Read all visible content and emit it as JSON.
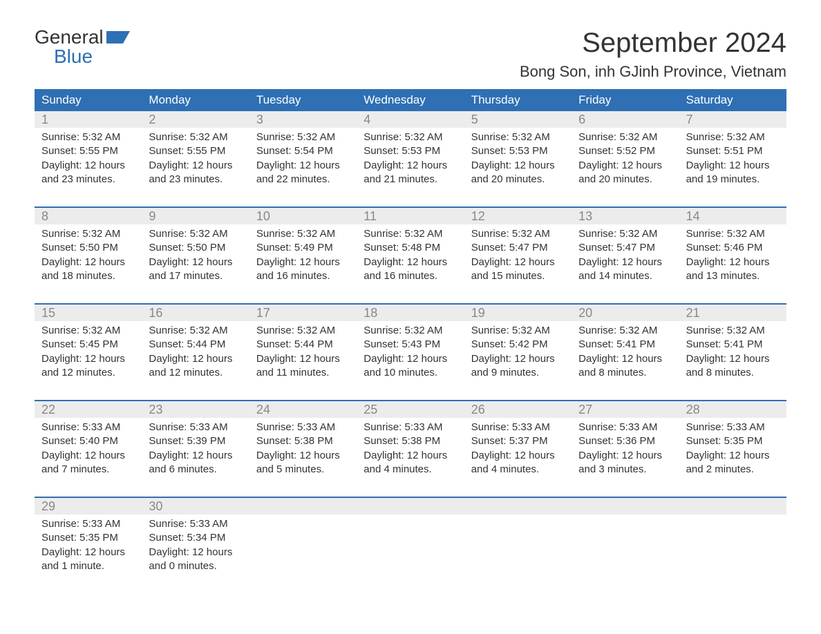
{
  "logo": {
    "line1": "General",
    "line2": "Blue"
  },
  "title": "September 2024",
  "location": "Bong Son, inh GJinh Province, Vietnam",
  "colors": {
    "header_bg": "#2f6fb3",
    "header_text": "#ffffff",
    "daynum_bg": "#ececec",
    "daynum_text": "#888888",
    "body_text": "#333333",
    "week_divider": "#2f6fb3",
    "logo_blue": "#2f6fb3",
    "page_bg": "#ffffff"
  },
  "typography": {
    "title_fontsize": 40,
    "location_fontsize": 22,
    "dow_fontsize": 17,
    "daynum_fontsize": 18,
    "body_fontsize": 15,
    "logo_fontsize": 28
  },
  "days_of_week": [
    "Sunday",
    "Monday",
    "Tuesday",
    "Wednesday",
    "Thursday",
    "Friday",
    "Saturday"
  ],
  "weeks": [
    [
      {
        "n": "1",
        "sunrise": "Sunrise: 5:32 AM",
        "sunset": "Sunset: 5:55 PM",
        "dl1": "Daylight: 12 hours",
        "dl2": "and 23 minutes."
      },
      {
        "n": "2",
        "sunrise": "Sunrise: 5:32 AM",
        "sunset": "Sunset: 5:55 PM",
        "dl1": "Daylight: 12 hours",
        "dl2": "and 23 minutes."
      },
      {
        "n": "3",
        "sunrise": "Sunrise: 5:32 AM",
        "sunset": "Sunset: 5:54 PM",
        "dl1": "Daylight: 12 hours",
        "dl2": "and 22 minutes."
      },
      {
        "n": "4",
        "sunrise": "Sunrise: 5:32 AM",
        "sunset": "Sunset: 5:53 PM",
        "dl1": "Daylight: 12 hours",
        "dl2": "and 21 minutes."
      },
      {
        "n": "5",
        "sunrise": "Sunrise: 5:32 AM",
        "sunset": "Sunset: 5:53 PM",
        "dl1": "Daylight: 12 hours",
        "dl2": "and 20 minutes."
      },
      {
        "n": "6",
        "sunrise": "Sunrise: 5:32 AM",
        "sunset": "Sunset: 5:52 PM",
        "dl1": "Daylight: 12 hours",
        "dl2": "and 20 minutes."
      },
      {
        "n": "7",
        "sunrise": "Sunrise: 5:32 AM",
        "sunset": "Sunset: 5:51 PM",
        "dl1": "Daylight: 12 hours",
        "dl2": "and 19 minutes."
      }
    ],
    [
      {
        "n": "8",
        "sunrise": "Sunrise: 5:32 AM",
        "sunset": "Sunset: 5:50 PM",
        "dl1": "Daylight: 12 hours",
        "dl2": "and 18 minutes."
      },
      {
        "n": "9",
        "sunrise": "Sunrise: 5:32 AM",
        "sunset": "Sunset: 5:50 PM",
        "dl1": "Daylight: 12 hours",
        "dl2": "and 17 minutes."
      },
      {
        "n": "10",
        "sunrise": "Sunrise: 5:32 AM",
        "sunset": "Sunset: 5:49 PM",
        "dl1": "Daylight: 12 hours",
        "dl2": "and 16 minutes."
      },
      {
        "n": "11",
        "sunrise": "Sunrise: 5:32 AM",
        "sunset": "Sunset: 5:48 PM",
        "dl1": "Daylight: 12 hours",
        "dl2": "and 16 minutes."
      },
      {
        "n": "12",
        "sunrise": "Sunrise: 5:32 AM",
        "sunset": "Sunset: 5:47 PM",
        "dl1": "Daylight: 12 hours",
        "dl2": "and 15 minutes."
      },
      {
        "n": "13",
        "sunrise": "Sunrise: 5:32 AM",
        "sunset": "Sunset: 5:47 PM",
        "dl1": "Daylight: 12 hours",
        "dl2": "and 14 minutes."
      },
      {
        "n": "14",
        "sunrise": "Sunrise: 5:32 AM",
        "sunset": "Sunset: 5:46 PM",
        "dl1": "Daylight: 12 hours",
        "dl2": "and 13 minutes."
      }
    ],
    [
      {
        "n": "15",
        "sunrise": "Sunrise: 5:32 AM",
        "sunset": "Sunset: 5:45 PM",
        "dl1": "Daylight: 12 hours",
        "dl2": "and 12 minutes."
      },
      {
        "n": "16",
        "sunrise": "Sunrise: 5:32 AM",
        "sunset": "Sunset: 5:44 PM",
        "dl1": "Daylight: 12 hours",
        "dl2": "and 12 minutes."
      },
      {
        "n": "17",
        "sunrise": "Sunrise: 5:32 AM",
        "sunset": "Sunset: 5:44 PM",
        "dl1": "Daylight: 12 hours",
        "dl2": "and 11 minutes."
      },
      {
        "n": "18",
        "sunrise": "Sunrise: 5:32 AM",
        "sunset": "Sunset: 5:43 PM",
        "dl1": "Daylight: 12 hours",
        "dl2": "and 10 minutes."
      },
      {
        "n": "19",
        "sunrise": "Sunrise: 5:32 AM",
        "sunset": "Sunset: 5:42 PM",
        "dl1": "Daylight: 12 hours",
        "dl2": "and 9 minutes."
      },
      {
        "n": "20",
        "sunrise": "Sunrise: 5:32 AM",
        "sunset": "Sunset: 5:41 PM",
        "dl1": "Daylight: 12 hours",
        "dl2": "and 8 minutes."
      },
      {
        "n": "21",
        "sunrise": "Sunrise: 5:32 AM",
        "sunset": "Sunset: 5:41 PM",
        "dl1": "Daylight: 12 hours",
        "dl2": "and 8 minutes."
      }
    ],
    [
      {
        "n": "22",
        "sunrise": "Sunrise: 5:33 AM",
        "sunset": "Sunset: 5:40 PM",
        "dl1": "Daylight: 12 hours",
        "dl2": "and 7 minutes."
      },
      {
        "n": "23",
        "sunrise": "Sunrise: 5:33 AM",
        "sunset": "Sunset: 5:39 PM",
        "dl1": "Daylight: 12 hours",
        "dl2": "and 6 minutes."
      },
      {
        "n": "24",
        "sunrise": "Sunrise: 5:33 AM",
        "sunset": "Sunset: 5:38 PM",
        "dl1": "Daylight: 12 hours",
        "dl2": "and 5 minutes."
      },
      {
        "n": "25",
        "sunrise": "Sunrise: 5:33 AM",
        "sunset": "Sunset: 5:38 PM",
        "dl1": "Daylight: 12 hours",
        "dl2": "and 4 minutes."
      },
      {
        "n": "26",
        "sunrise": "Sunrise: 5:33 AM",
        "sunset": "Sunset: 5:37 PM",
        "dl1": "Daylight: 12 hours",
        "dl2": "and 4 minutes."
      },
      {
        "n": "27",
        "sunrise": "Sunrise: 5:33 AM",
        "sunset": "Sunset: 5:36 PM",
        "dl1": "Daylight: 12 hours",
        "dl2": "and 3 minutes."
      },
      {
        "n": "28",
        "sunrise": "Sunrise: 5:33 AM",
        "sunset": "Sunset: 5:35 PM",
        "dl1": "Daylight: 12 hours",
        "dl2": "and 2 minutes."
      }
    ],
    [
      {
        "n": "29",
        "sunrise": "Sunrise: 5:33 AM",
        "sunset": "Sunset: 5:35 PM",
        "dl1": "Daylight: 12 hours",
        "dl2": "and 1 minute."
      },
      {
        "n": "30",
        "sunrise": "Sunrise: 5:33 AM",
        "sunset": "Sunset: 5:34 PM",
        "dl1": "Daylight: 12 hours",
        "dl2": "and 0 minutes."
      },
      {
        "n": "",
        "sunrise": "",
        "sunset": "",
        "dl1": "",
        "dl2": ""
      },
      {
        "n": "",
        "sunrise": "",
        "sunset": "",
        "dl1": "",
        "dl2": ""
      },
      {
        "n": "",
        "sunrise": "",
        "sunset": "",
        "dl1": "",
        "dl2": ""
      },
      {
        "n": "",
        "sunrise": "",
        "sunset": "",
        "dl1": "",
        "dl2": ""
      },
      {
        "n": "",
        "sunrise": "",
        "sunset": "",
        "dl1": "",
        "dl2": ""
      }
    ]
  ]
}
